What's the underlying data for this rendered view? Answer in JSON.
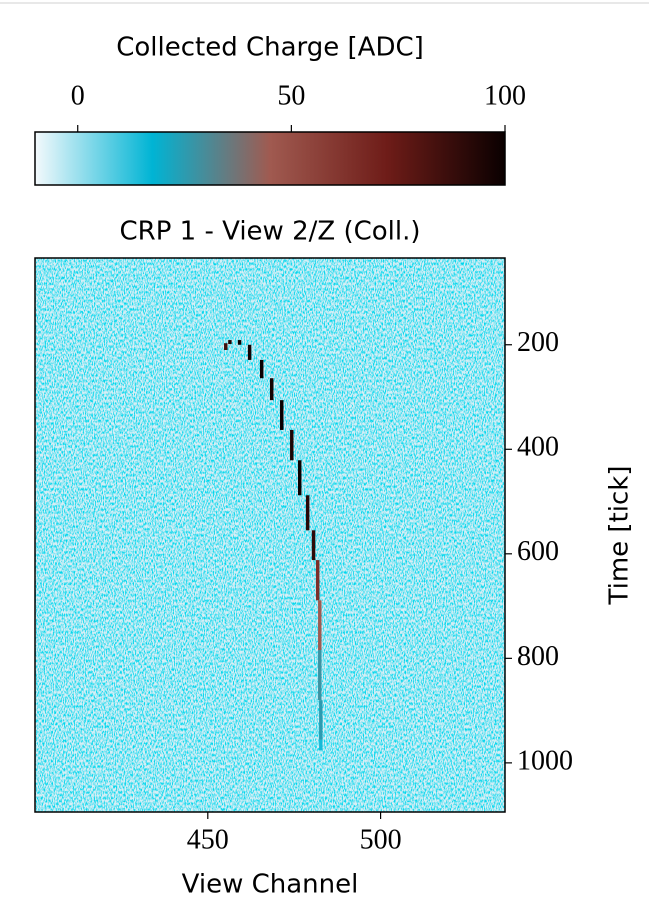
{
  "chart_data": {
    "type": "heatmap",
    "colorbar_label": "Collected Charge [ADC]",
    "clim": [
      -10,
      100
    ],
    "cticks": [
      0,
      50,
      100
    ],
    "colormap": [
      "#f4f9fc",
      "#00b4d4",
      "#a05a50",
      "#6e1c18",
      "#0a0000"
    ],
    "title": "CRP 1 - View 2/Z (Coll.)",
    "xlabel": "View Channel",
    "ylabel": "Time [tick]",
    "xlim": [
      400,
      536
    ],
    "xticks": [
      450,
      500
    ],
    "ylim": [
      1094,
      34
    ],
    "yticks": [
      200,
      400,
      600,
      800,
      1000
    ],
    "x": [
      455.2,
      456.4,
      459.2,
      462.1,
      465.6,
      468.5,
      471.4,
      474.3,
      476.6,
      478.9,
      480.6,
      481.8,
      482.4,
      482.4,
      482.7,
      482.7
    ],
    "y": [
      210,
      197,
      191,
      200,
      229,
      264,
      306,
      363,
      421,
      488,
      555,
      612,
      689,
      784,
      880,
      956
    ],
    "values": [
      85,
      95,
      100,
      98,
      100,
      97,
      100,
      95,
      100,
      92,
      90,
      65,
      45,
      28,
      25,
      15
    ]
  }
}
